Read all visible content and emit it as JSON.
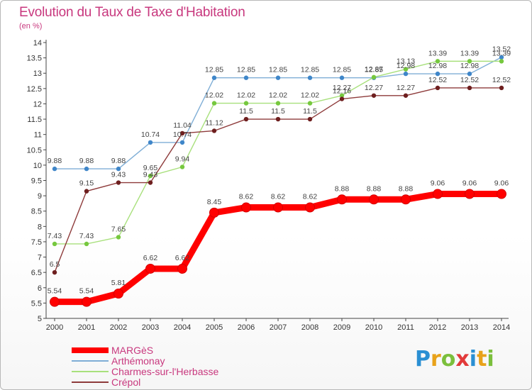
{
  "title": "Evolution du Taux de Taxe d'Habitation",
  "unit_label": "(en %)",
  "brand": {
    "text": "Proxiti",
    "letters": [
      {
        "ch": "P",
        "color": "#2a8fd3"
      },
      {
        "ch": "r",
        "color": "#e8a21a"
      },
      {
        "ch": "o",
        "color": "#7bbf3c"
      },
      {
        "ch": "x",
        "color": "#e23a3a"
      },
      {
        "ch": "i",
        "color": "#2a8fd3"
      },
      {
        "ch": "t",
        "color": "#e8a21a"
      },
      {
        "ch": "i",
        "color": "#7bbf3c"
      }
    ]
  },
  "chart_data": {
    "type": "line",
    "title": "Evolution du Taux de Taxe d'Habitation",
    "ylabel": "(en %)",
    "xlabel": "",
    "x": [
      "2000",
      "2001",
      "2002",
      "2003",
      "2004",
      "2005",
      "2006",
      "2007",
      "2008",
      "2009",
      "2010",
      "2011",
      "2012",
      "2013",
      "2014"
    ],
    "ylim": [
      5,
      14
    ],
    "yticks": [
      "5",
      "5.5",
      "6",
      "6.5",
      "7",
      "7.5",
      "8",
      "8.5",
      "9",
      "9.5",
      "10",
      "10.5",
      "11",
      "11.5",
      "12",
      "12.5",
      "13",
      "13.5",
      "14"
    ],
    "grid": false,
    "legend_position": "bottom-left",
    "series": [
      {
        "name": "MARGèS",
        "color": "#ff0000",
        "marker_color": "#ff0000",
        "emphasis": true,
        "values": [
          5.54,
          5.54,
          5.81,
          6.62,
          6.62,
          8.45,
          8.62,
          8.62,
          8.62,
          8.88,
          8.88,
          8.88,
          9.06,
          9.06,
          9.06
        ],
        "labels": [
          "5.54",
          "5.54",
          "5.81",
          "6.62",
          "6.62",
          "8.45",
          "8.62",
          "8.62",
          "8.62",
          "8.88",
          "8.88",
          "8.88",
          "9.06",
          "9.06",
          "9.06"
        ]
      },
      {
        "name": "Arthémonay",
        "color": "#7faed6",
        "marker_color": "#3f86c9",
        "emphasis": false,
        "values": [
          9.88,
          9.88,
          9.88,
          10.74,
          10.74,
          12.85,
          12.85,
          12.85,
          12.85,
          12.85,
          12.85,
          12.98,
          12.98,
          12.98,
          13.52
        ],
        "labels": [
          "9.88",
          "9.88",
          "9.88",
          "10.74",
          "10.74",
          "12.85",
          "12.85",
          "12.85",
          "12.85",
          "12.85",
          "12.85",
          "12.98",
          "12.98",
          "12.98",
          "13.52"
        ]
      },
      {
        "name": "Charmes-sur-l'Herbasse",
        "color": "#a8e07c",
        "marker_color": "#76c83e",
        "emphasis": false,
        "values": [
          7.43,
          7.43,
          7.65,
          9.65,
          9.94,
          12.02,
          12.02,
          12.02,
          12.02,
          12.27,
          12.87,
          13.13,
          13.39,
          13.39,
          13.39
        ],
        "labels": [
          "7.43",
          "7.43",
          "7.65",
          "9.65",
          "9.94",
          "12.02",
          "12.02",
          "12.02",
          "12.02",
          "12.27",
          "12.87",
          "13.13",
          "13.39",
          "13.39",
          "13.39"
        ]
      },
      {
        "name": "Crépol",
        "color": "#8e3b3b",
        "marker_color": "#6e1f1f",
        "emphasis": false,
        "values": [
          6.5,
          9.15,
          9.43,
          9.43,
          11.04,
          11.12,
          11.5,
          11.5,
          11.5,
          12.16,
          12.27,
          12.27,
          12.52,
          12.52,
          12.52
        ],
        "labels": [
          "6.5",
          "9.15",
          "9.43",
          "9.43",
          "11.04",
          "11.12",
          "11.5",
          "11.5",
          "11.5",
          "12.16",
          "12.27",
          "12.27",
          "12.52",
          "12.52",
          "12.52"
        ]
      }
    ]
  }
}
